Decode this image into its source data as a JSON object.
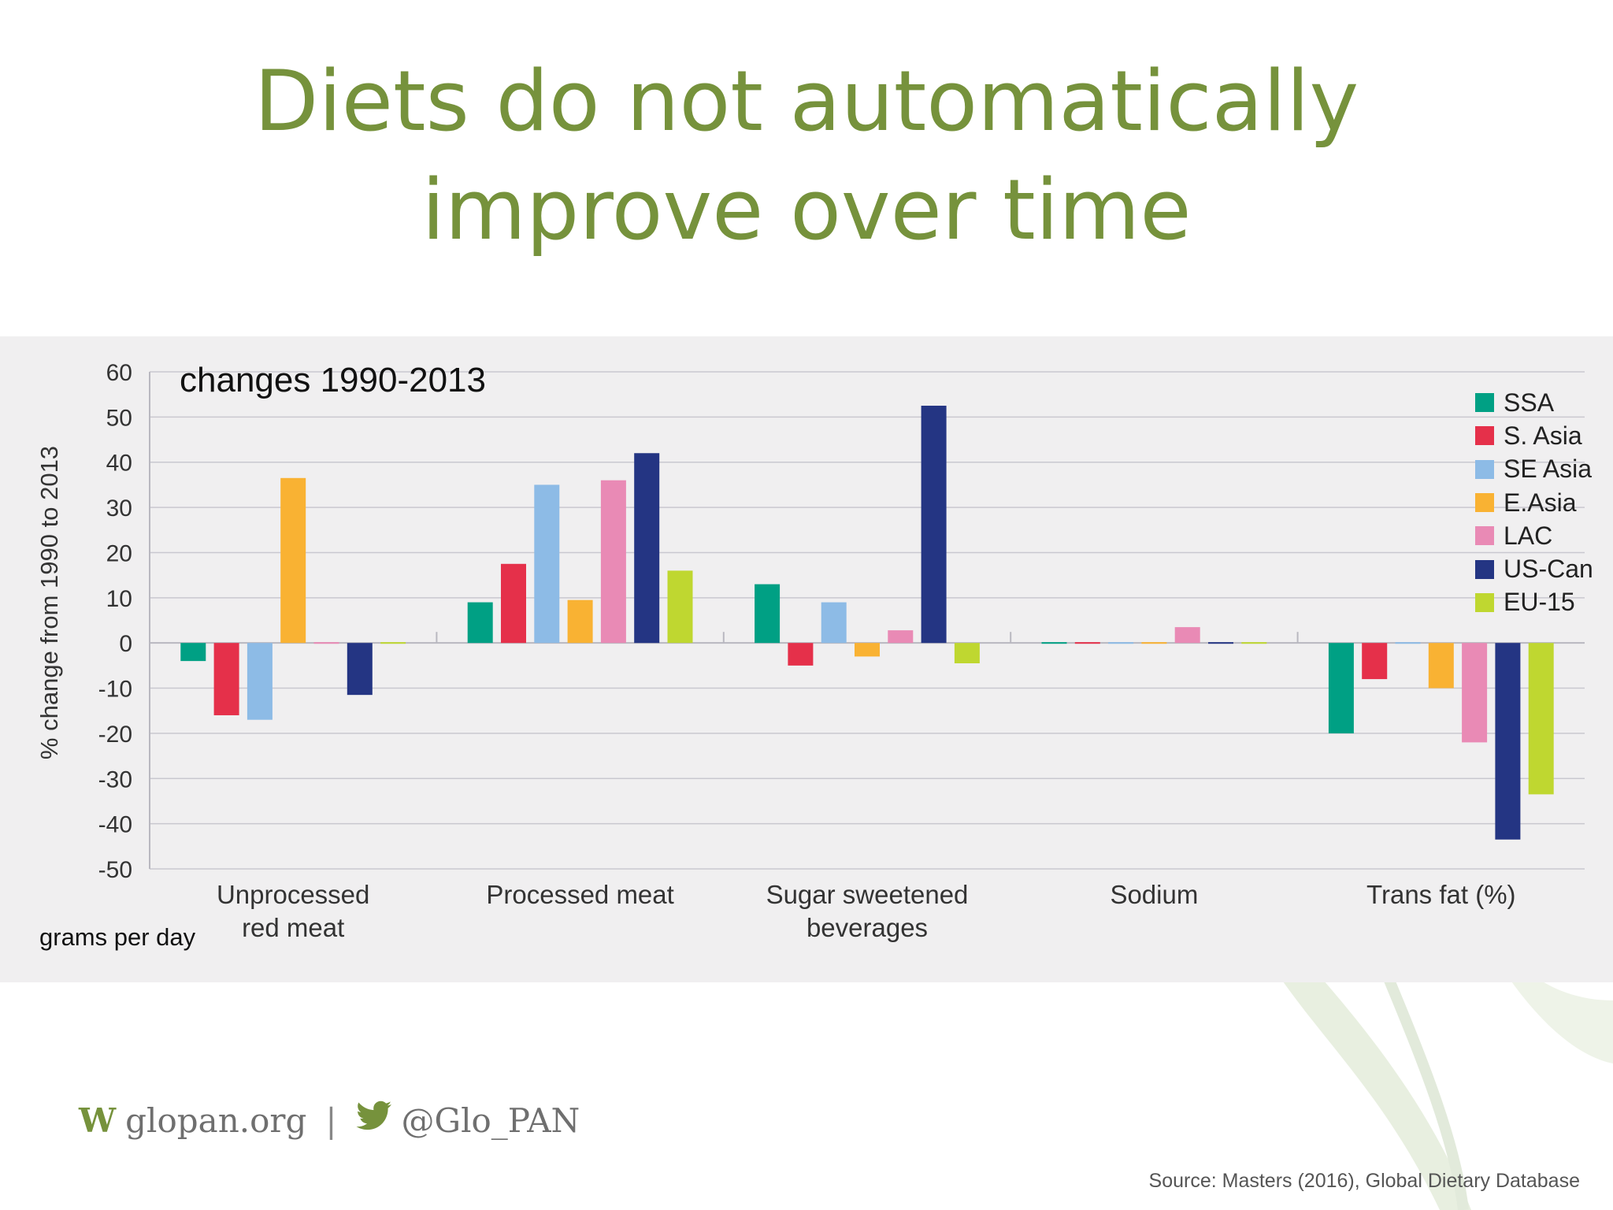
{
  "slide": {
    "title_line1": "Diets do not automatically",
    "title_line2": "improve over time",
    "footer_w": "W",
    "footer_site": "glopan.org",
    "footer_separator": "|",
    "footer_handle": "@Glo_PAN",
    "source": "Source: Masters (2016), Global Dietary Database",
    "accent_color": "#76923c",
    "icons": [
      "leaf-watermark-icon",
      "twitter-bird-icon"
    ]
  },
  "chart_data": {
    "type": "bar",
    "subtitle": "changes 1990-2013",
    "ylabel": "% change from 1990 to 2013",
    "unit_note": "grams per day",
    "ylim": [
      -50,
      60
    ],
    "yticks": [
      60,
      50,
      40,
      30,
      20,
      10,
      0,
      -10,
      -20,
      -30,
      -40,
      -50
    ],
    "grid": true,
    "legend_position": "top-right",
    "categories": [
      [
        "Unprocessed",
        "red meat"
      ],
      [
        "Processed meat"
      ],
      [
        "Sugar sweetened",
        "beverages"
      ],
      [
        "Sodium"
      ],
      [
        "Trans fat (%)"
      ]
    ],
    "series": [
      {
        "name": "SSA",
        "color": "#00a084",
        "values": [
          -4,
          9,
          13,
          0,
          -20
        ]
      },
      {
        "name": "S. Asia",
        "color": "#e5304a",
        "values": [
          -16,
          17.5,
          -5,
          0,
          -8
        ]
      },
      {
        "name": "SE Asia",
        "color": "#8dbbe6",
        "values": [
          -17,
          35,
          9,
          0,
          0
        ]
      },
      {
        "name": "E.Asia",
        "color": "#f9b233",
        "values": [
          36.5,
          9.5,
          -3,
          0,
          -10
        ]
      },
      {
        "name": "LAC",
        "color": "#e98ab5",
        "values": [
          0,
          36,
          2.8,
          3.5,
          -22
        ]
      },
      {
        "name": "US-Can",
        "color": "#243583",
        "values": [
          -11.5,
          42,
          52.5,
          0,
          -43.5
        ]
      },
      {
        "name": "EU-15",
        "color": "#bfd730",
        "values": [
          0,
          16,
          -4.5,
          0,
          -33.5
        ]
      }
    ]
  }
}
